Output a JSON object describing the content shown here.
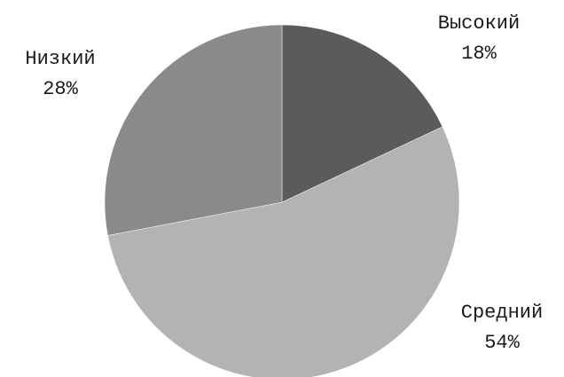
{
  "chart_data": {
    "type": "pie",
    "title": "",
    "slices": [
      {
        "label": "Высокий",
        "value": 18,
        "display": "18%",
        "color": "#5b5b5b"
      },
      {
        "label": "Средний",
        "value": 54,
        "display": "54%",
        "color": "#b3b3b3"
      },
      {
        "label": "Низкий",
        "value": 28,
        "display": "28%",
        "color": "#8a8a8a"
      }
    ],
    "start_angle_deg": 0,
    "direction": "clockwise",
    "legend": "none"
  }
}
